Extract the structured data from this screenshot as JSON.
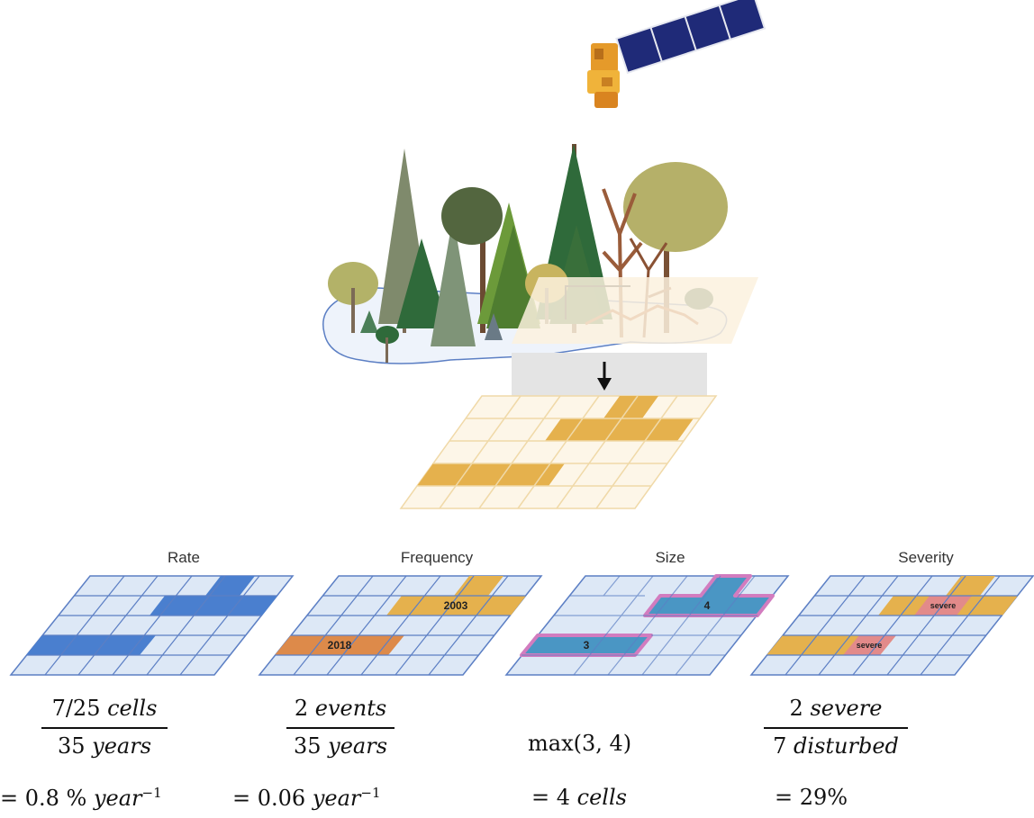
{
  "panels": [
    {
      "title": "Rate",
      "numerator_count": "7/25",
      "numerator_unit": "cells",
      "denominator_count": "35",
      "denominator_unit": "years",
      "result_prefix": "= 0.8 %",
      "result_unit": "year",
      "result_exp": "−1"
    },
    {
      "title": "Frequency",
      "numerator_count": "2",
      "numerator_unit": "events",
      "denominator_count": "35",
      "denominator_unit": "years",
      "result_prefix": "= 0.06",
      "result_unit": "year",
      "result_exp": "−1",
      "label_a": "2003",
      "label_b": "2018"
    },
    {
      "title": "Size",
      "expression": "max(3, 4)",
      "result_prefix": "= 4",
      "result_unit": "cells",
      "label_a": "4",
      "label_b": "3"
    },
    {
      "title": "Severity",
      "numerator_count": "2",
      "numerator_unit": "severe",
      "denominator_count": "7",
      "denominator_unit": "disturbed",
      "result_prefix": "= 29%",
      "label_a": "severe",
      "label_b": "severe"
    }
  ],
  "icons": [
    "satellite-icon",
    "forest-icon",
    "down-arrow-icon"
  ],
  "colors": {
    "grid_fill": "#dde8f6",
    "grid_line": "#5c7fc4",
    "rate": "#4a7fcf",
    "disturb": "#e5b14d",
    "orange": "#dd8a4a",
    "size_fill": "#4a96c4",
    "size_outline": "#d27cbf",
    "severe": "#e28a8a"
  }
}
